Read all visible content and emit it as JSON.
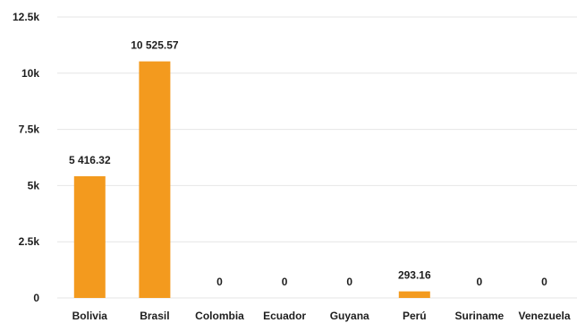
{
  "chart_data": {
    "type": "bar",
    "categories": [
      "Bolivia",
      "Brasil",
      "Colombia",
      "Ecuador",
      "Guyana",
      "Perú",
      "Suriname",
      "Venezuela"
    ],
    "values": [
      5416.32,
      10525.57,
      0,
      0,
      0,
      293.16,
      0,
      0
    ],
    "data_labels": [
      "5 416.32",
      "10 525.57",
      "0",
      "0",
      "0",
      "293.16",
      "0",
      "0"
    ],
    "ylim": [
      0,
      12500
    ],
    "yticks": [
      0,
      2500,
      5000,
      7500,
      10000,
      12500
    ],
    "ytick_labels": [
      "0",
      "2.5k",
      "5k",
      "7.5k",
      "10k",
      "12.5k"
    ],
    "grid": true,
    "bar_color": "#f39a1e",
    "legend": "none"
  }
}
